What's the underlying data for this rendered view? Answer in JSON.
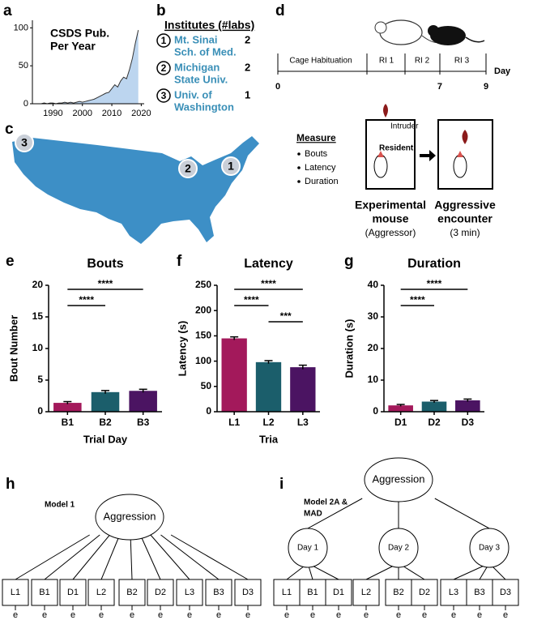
{
  "panel_labels": [
    "a",
    "b",
    "c",
    "d",
    "e",
    "f",
    "g",
    "h",
    "i"
  ],
  "chart_data": [
    {
      "type": "area",
      "title": [
        "CSDS Pub.",
        "Per Year"
      ],
      "x": [
        1986,
        1987,
        1988,
        1989,
        1990,
        1991,
        1992,
        1993,
        1994,
        1995,
        1996,
        1997,
        1998,
        1999,
        2000,
        2001,
        2002,
        2003,
        2004,
        2005,
        2006,
        2007,
        2008,
        2009,
        2010,
        2011,
        2012,
        2013,
        2014,
        2015,
        2016,
        2017,
        2018,
        2019
      ],
      "values": [
        0,
        1,
        0,
        1,
        1,
        0,
        1,
        1,
        2,
        1,
        2,
        1,
        2,
        3,
        2,
        3,
        4,
        5,
        6,
        8,
        10,
        12,
        14,
        15,
        20,
        25,
        22,
        30,
        35,
        33,
        45,
        60,
        80,
        97
      ],
      "color": "#bcd5ef",
      "line_color": "#333333",
      "xlim": [
        1983,
        2021
      ],
      "ylim": [
        0,
        110
      ],
      "xticks": [
        1990,
        2000,
        2010,
        2020
      ],
      "yticks": [
        0,
        50,
        100
      ]
    },
    {
      "type": "bar",
      "title": "Bouts",
      "ylabel": "Bout Number",
      "xlabel": "Trial Day",
      "categories": [
        "B1",
        "B2",
        "B3"
      ],
      "values": [
        1.4,
        3.1,
        3.3
      ],
      "errors": [
        0.2,
        0.25,
        0.25
      ],
      "colors": [
        "#a3195b",
        "#1b5e6b",
        "#4b1462"
      ],
      "ylim": [
        0,
        20
      ],
      "yticks": [
        0,
        5,
        10,
        15,
        20
      ],
      "significance": [
        {
          "label": "****",
          "between": [
            "B1",
            "B3"
          ]
        },
        {
          "label": "****",
          "between": [
            "B1",
            "B2"
          ]
        }
      ]
    },
    {
      "type": "bar",
      "title": "Latency",
      "ylabel": "Latency (s)",
      "xlabel": "Tria",
      "categories": [
        "L1",
        "L2",
        "L3"
      ],
      "values": [
        145,
        98,
        88
      ],
      "errors": [
        3,
        3,
        4
      ],
      "colors": [
        "#a3195b",
        "#1b5e6b",
        "#4b1462"
      ],
      "ylim": [
        0,
        250
      ],
      "yticks": [
        0,
        50,
        100,
        150,
        200,
        250
      ],
      "significance": [
        {
          "label": "****",
          "between": [
            "L1",
            "L3"
          ]
        },
        {
          "label": "****",
          "between": [
            "L1",
            "L2"
          ]
        },
        {
          "label": "***",
          "between": [
            "L2",
            "L3"
          ]
        }
      ]
    },
    {
      "type": "bar",
      "title": "Duration",
      "ylabel": "Duration (s)",
      "categories": [
        "D1",
        "D2",
        "D3"
      ],
      "values": [
        2.0,
        3.2,
        3.6
      ],
      "errors": [
        0.3,
        0.35,
        0.4
      ],
      "colors": [
        "#a3195b",
        "#1b5e6b",
        "#4b1462"
      ],
      "ylim": [
        0,
        40
      ],
      "yticks": [
        0,
        10,
        20,
        30,
        40
      ],
      "significance": [
        {
          "label": "****",
          "between": [
            "D1",
            "D3"
          ]
        },
        {
          "label": "****",
          "between": [
            "D1",
            "D2"
          ]
        }
      ]
    }
  ],
  "institutes": {
    "title": "Institutes (#labs)",
    "items": [
      {
        "number": "1",
        "name": [
          "Mt. Sinai",
          "Sch. of Med."
        ],
        "labs": "2"
      },
      {
        "number": "2",
        "name": [
          "Michigan",
          "State Univ."
        ],
        "labs": "2"
      },
      {
        "number": "3",
        "name": [
          "Univ. of",
          "Washington"
        ],
        "labs": "1"
      }
    ]
  },
  "map": {
    "markers": [
      "3",
      "2",
      "1"
    ]
  },
  "timeline": {
    "phases": [
      "Cage Habituation",
      "RI 1",
      "RI 2",
      "RI 3"
    ],
    "axis_label": "Day",
    "ticks": [
      0,
      7,
      9
    ]
  },
  "procedure": {
    "intruder": "Intruder",
    "resident": "Resident",
    "measure": {
      "title": "Measure",
      "items": [
        "Bouts",
        "Latency",
        "Duration"
      ]
    },
    "captions": [
      [
        "Experimental",
        "mouse",
        "(Aggressor)"
      ],
      [
        "Aggressive",
        "encounter",
        "(3 min)"
      ]
    ]
  },
  "models": [
    {
      "title": [
        "Model 1"
      ],
      "latent": "Aggression",
      "indicators": [
        "L1",
        "B1",
        "D1",
        "L2",
        "B2",
        "D2",
        "L3",
        "B3",
        "D3"
      ],
      "errors": [
        "e",
        "e",
        "e",
        "e",
        "e",
        "e",
        "e",
        "e",
        "e"
      ]
    },
    {
      "title": [
        "Model 2A &",
        "MAD"
      ],
      "latent": "Aggression",
      "days": [
        "Day 1",
        "Day 2",
        "Day 3"
      ],
      "indicators": [
        "L1",
        "B1",
        "D1",
        "L2",
        "B2",
        "D2",
        "L3",
        "B3",
        "D3"
      ],
      "errors": [
        "e",
        "e",
        "e",
        "e",
        "e",
        "e",
        "e",
        "e",
        "e"
      ]
    }
  ]
}
